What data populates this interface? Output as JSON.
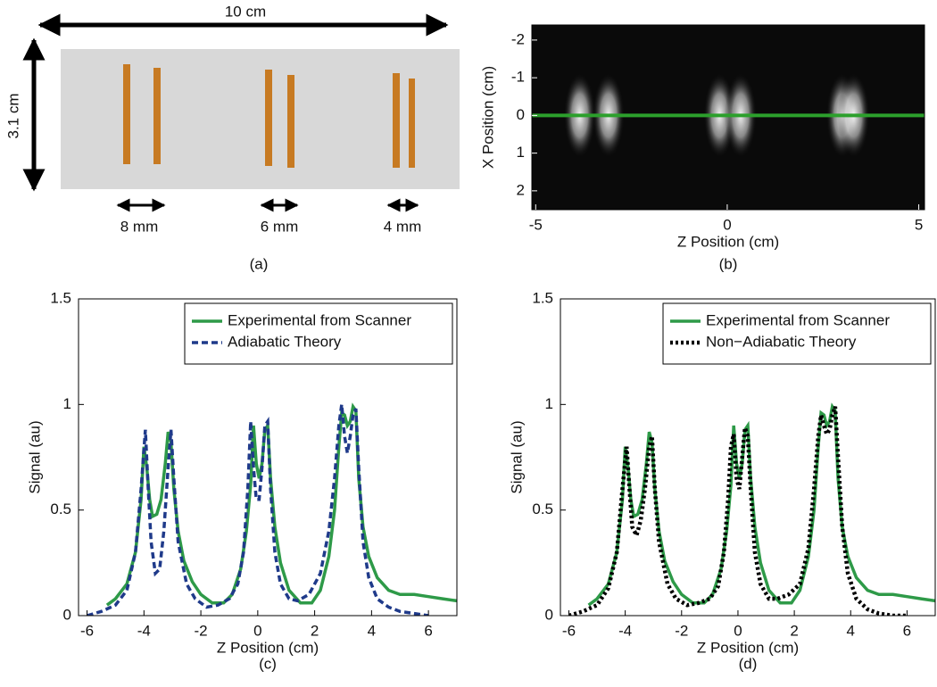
{
  "photo": {
    "width_label": "10 cm",
    "height_label": "3.1 cm",
    "spacing_labels": [
      "8 mm",
      "6 mm",
      "4 mm"
    ],
    "caption": "(a)"
  },
  "chart_data": [
    {
      "type": "image",
      "caption": "(b)",
      "xlabel": "Z Position (cm)",
      "ylabel": "X Position (cm)",
      "xlim": [
        -5.1,
        5.15
      ],
      "ylim": [
        -2.4,
        2.5
      ],
      "xticks": [
        -5,
        0,
        5
      ],
      "yticks": [
        -2,
        -1,
        0,
        1,
        2
      ],
      "spots": [
        -3.85,
        -3.1,
        -0.2,
        0.35,
        3.0,
        3.3
      ],
      "line_y": 0,
      "line_color": "#2ca02c"
    },
    {
      "type": "line",
      "caption": "(c)",
      "xlabel": "Z Position (cm)",
      "ylabel": "Signal (au)",
      "xlim": [
        -6.3,
        7
      ],
      "ylim": [
        0,
        1.5
      ],
      "xticks": [
        -6,
        -4,
        -2,
        0,
        2,
        4,
        6
      ],
      "yticks": [
        0,
        0.5,
        1,
        1.5
      ],
      "legend": "upper right",
      "series": [
        {
          "name": "Experimental from Scanner",
          "color": "#2e9a48",
          "style": "solid",
          "x": [
            -5.3,
            -5,
            -4.6,
            -4.3,
            -4.1,
            -4.0,
            -3.9,
            -3.8,
            -3.7,
            -3.55,
            -3.4,
            -3.25,
            -3.15,
            -3.05,
            -2.95,
            -2.8,
            -2.6,
            -2.3,
            -2,
            -1.6,
            -1.2,
            -0.9,
            -0.6,
            -0.4,
            -0.25,
            -0.15,
            -0.05,
            0.05,
            0.15,
            0.25,
            0.35,
            0.45,
            0.6,
            0.8,
            1.1,
            1.5,
            1.9,
            2.2,
            2.5,
            2.7,
            2.85,
            2.95,
            3.05,
            3.15,
            3.25,
            3.35,
            3.45,
            3.55,
            3.7,
            3.9,
            4.2,
            4.6,
            5,
            5.5,
            6,
            6.5,
            7
          ],
          "values": [
            0.05,
            0.08,
            0.15,
            0.3,
            0.55,
            0.8,
            0.7,
            0.55,
            0.47,
            0.48,
            0.55,
            0.72,
            0.87,
            0.82,
            0.6,
            0.4,
            0.26,
            0.16,
            0.1,
            0.06,
            0.06,
            0.1,
            0.22,
            0.4,
            0.62,
            0.9,
            0.72,
            0.65,
            0.72,
            0.88,
            0.9,
            0.65,
            0.42,
            0.25,
            0.12,
            0.06,
            0.06,
            0.12,
            0.28,
            0.5,
            0.8,
            0.96,
            0.95,
            0.9,
            0.92,
            0.99,
            0.97,
            0.65,
            0.42,
            0.28,
            0.18,
            0.12,
            0.1,
            0.1,
            0.09,
            0.08,
            0.07
          ]
        },
        {
          "name": "Adiabatic Theory",
          "color": "#1f3a8a",
          "style": "dashed",
          "x": [
            -6,
            -5.5,
            -5,
            -4.6,
            -4.3,
            -4.1,
            -3.95,
            -3.85,
            -3.75,
            -3.6,
            -3.45,
            -3.3,
            -3.15,
            -3.05,
            -2.95,
            -2.8,
            -2.5,
            -2.2,
            -1.8,
            -1.4,
            -1,
            -0.7,
            -0.5,
            -0.35,
            -0.25,
            -0.15,
            -0.05,
            0.05,
            0.15,
            0.25,
            0.35,
            0.45,
            0.6,
            0.8,
            1.1,
            1.4,
            1.8,
            2.2,
            2.5,
            2.7,
            2.85,
            2.95,
            3.05,
            3.15,
            3.25,
            3.35,
            3.45,
            3.55,
            3.7,
            3.9,
            4.2,
            4.6,
            5,
            5.5,
            6
          ],
          "values": [
            0,
            0.02,
            0.05,
            0.12,
            0.3,
            0.6,
            0.88,
            0.6,
            0.35,
            0.2,
            0.22,
            0.4,
            0.7,
            0.88,
            0.65,
            0.35,
            0.15,
            0.08,
            0.04,
            0.05,
            0.08,
            0.15,
            0.3,
            0.6,
            0.92,
            0.7,
            0.55,
            0.55,
            0.7,
            0.9,
            0.92,
            0.6,
            0.3,
            0.15,
            0.08,
            0.07,
            0.1,
            0.2,
            0.4,
            0.65,
            0.9,
            1.0,
            0.85,
            0.77,
            0.85,
            0.95,
            0.98,
            0.7,
            0.35,
            0.18,
            0.08,
            0.04,
            0.02,
            0.01,
            0
          ]
        }
      ]
    },
    {
      "type": "line",
      "caption": "(d)",
      "xlabel": "Z Position (cm)",
      "ylabel": "Signal (au)",
      "xlim": [
        -6.3,
        7
      ],
      "ylim": [
        0,
        1.5
      ],
      "xticks": [
        -6,
        -4,
        -2,
        0,
        2,
        4,
        6
      ],
      "yticks": [
        0,
        0.5,
        1,
        1.5
      ],
      "legend": "upper right",
      "series": [
        {
          "name": "Experimental from Scanner",
          "color": "#2e9a48",
          "style": "solid",
          "x": [
            -5.3,
            -5,
            -4.6,
            -4.3,
            -4.1,
            -4.0,
            -3.9,
            -3.8,
            -3.7,
            -3.55,
            -3.4,
            -3.25,
            -3.15,
            -3.05,
            -2.95,
            -2.8,
            -2.6,
            -2.3,
            -2,
            -1.6,
            -1.2,
            -0.9,
            -0.6,
            -0.4,
            -0.25,
            -0.15,
            -0.05,
            0.05,
            0.15,
            0.25,
            0.35,
            0.45,
            0.6,
            0.8,
            1.1,
            1.5,
            1.9,
            2.2,
            2.5,
            2.7,
            2.85,
            2.95,
            3.05,
            3.15,
            3.25,
            3.35,
            3.45,
            3.55,
            3.7,
            3.9,
            4.2,
            4.6,
            5,
            5.5,
            6,
            6.5,
            7
          ],
          "values": [
            0.05,
            0.08,
            0.15,
            0.3,
            0.55,
            0.8,
            0.7,
            0.55,
            0.47,
            0.48,
            0.55,
            0.72,
            0.87,
            0.82,
            0.6,
            0.4,
            0.26,
            0.16,
            0.1,
            0.06,
            0.06,
            0.1,
            0.22,
            0.4,
            0.62,
            0.9,
            0.72,
            0.65,
            0.72,
            0.88,
            0.9,
            0.65,
            0.42,
            0.25,
            0.12,
            0.06,
            0.06,
            0.12,
            0.28,
            0.5,
            0.8,
            0.96,
            0.95,
            0.9,
            0.92,
            0.99,
            0.97,
            0.65,
            0.42,
            0.28,
            0.18,
            0.12,
            0.1,
            0.1,
            0.09,
            0.08,
            0.07
          ]
        },
        {
          "name": "Non−Adiabatic Theory",
          "color": "#000000",
          "style": "dotted",
          "x": [
            -6,
            -5.5,
            -5,
            -4.6,
            -4.3,
            -4.1,
            -3.95,
            -3.85,
            -3.75,
            -3.6,
            -3.45,
            -3.3,
            -3.15,
            -3.05,
            -2.95,
            -2.8,
            -2.5,
            -2.2,
            -1.8,
            -1.4,
            -1,
            -0.7,
            -0.5,
            -0.35,
            -0.25,
            -0.15,
            -0.05,
            0.05,
            0.15,
            0.25,
            0.35,
            0.45,
            0.6,
            0.8,
            1.1,
            1.4,
            1.8,
            2.2,
            2.5,
            2.7,
            2.85,
            2.95,
            3.05,
            3.15,
            3.25,
            3.35,
            3.45,
            3.55,
            3.7,
            3.9,
            4.2,
            4.6,
            5,
            5.5,
            6
          ],
          "values": [
            0,
            0.02,
            0.05,
            0.13,
            0.3,
            0.6,
            0.8,
            0.6,
            0.42,
            0.38,
            0.45,
            0.6,
            0.8,
            0.85,
            0.6,
            0.35,
            0.15,
            0.08,
            0.05,
            0.06,
            0.08,
            0.14,
            0.3,
            0.55,
            0.8,
            0.86,
            0.65,
            0.6,
            0.75,
            0.89,
            0.85,
            0.6,
            0.3,
            0.15,
            0.08,
            0.08,
            0.1,
            0.15,
            0.32,
            0.6,
            0.85,
            0.95,
            0.9,
            0.86,
            0.88,
            0.95,
            0.99,
            0.75,
            0.42,
            0.2,
            0.08,
            0.03,
            0.01,
            0,
            0
          ]
        }
      ]
    }
  ]
}
